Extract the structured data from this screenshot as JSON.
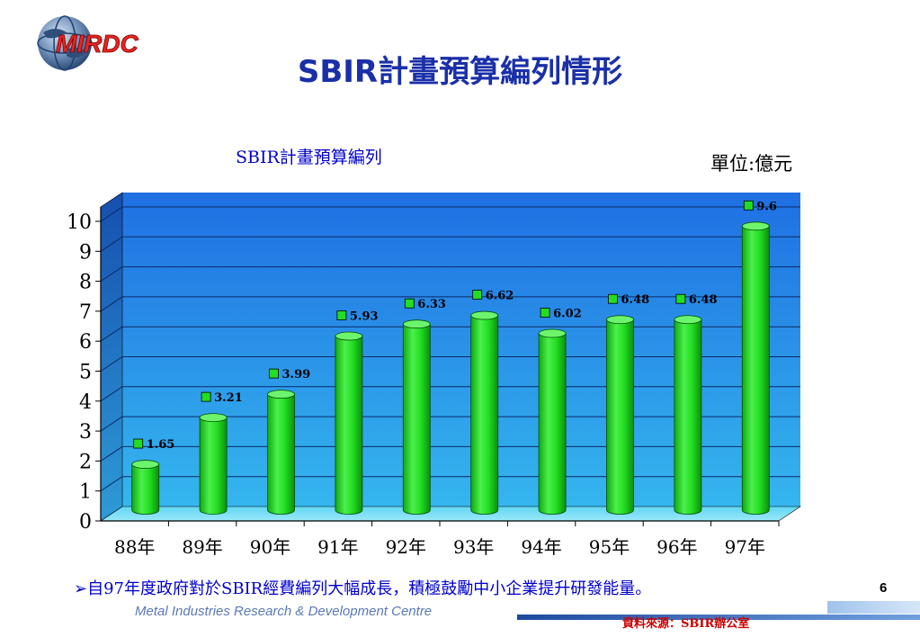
{
  "header": {
    "logo_text": "MIRDC",
    "title": "SBIR計畫預算編列情形"
  },
  "chart_data": {
    "type": "bar",
    "title": "SBIR計畫預算編列",
    "unit": "單位:億元",
    "categories": [
      "88年",
      "89年",
      "90年",
      "91年",
      "92年",
      "93年",
      "94年",
      "95年",
      "96年",
      "97年"
    ],
    "values": [
      1.65,
      3.21,
      3.99,
      5.93,
      6.33,
      6.62,
      6.02,
      6.48,
      6.48,
      9.6
    ],
    "value_labels": [
      "1.65",
      "3.21",
      "3.99",
      "5.93",
      "6.33",
      "6.62",
      "6.02",
      "6.48",
      "6.48",
      "9.6"
    ],
    "ylim": [
      0,
      10
    ],
    "yticks": [
      0,
      1,
      2,
      3,
      4,
      5,
      6,
      7,
      8,
      9,
      10
    ],
    "grid": true,
    "legend": "none",
    "bar_color": "#22dd22",
    "plot_background": "#1e7fe0"
  },
  "note": "➢自97年度政府對於SBIR經費編列大幅成長，積極鼓勵中小企業提升研發能量。",
  "footer": {
    "page_number": "6",
    "organization": "Metal Industries Research & Development Centre",
    "source": "資料來源：SBIR辦公室"
  }
}
